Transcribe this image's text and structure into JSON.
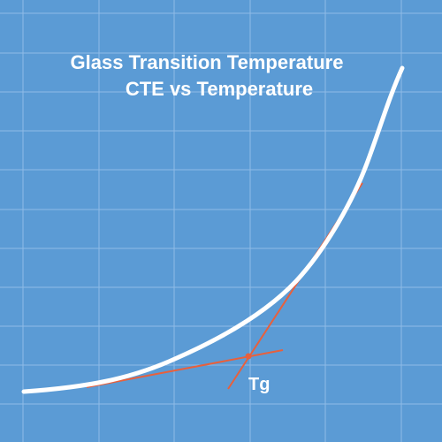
{
  "title": {
    "line1": "Glass Transition Temperature",
    "line2": "CTE vs Temperature"
  },
  "tg_label": "Tg",
  "colors": {
    "background": "#5b9bd5",
    "grid": "#8fbbe6",
    "curve": "#ffffff",
    "tangent": "#e8603c",
    "text": "#ffffff"
  }
}
